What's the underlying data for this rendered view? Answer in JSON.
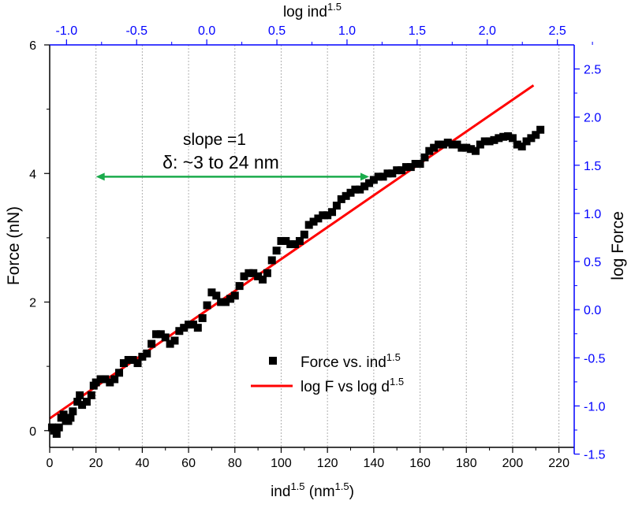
{
  "chart_data": {
    "type": "scatter",
    "title": "",
    "colors": {
      "points": "#000000",
      "fit": "#ff0000",
      "arrow": "#1aab4b",
      "secondary_axes": "#0000ff",
      "grid": "#b0b0b0"
    },
    "xlabel": {
      "base": "ind",
      "sup": "1.5",
      "rest": " (nm",
      "sup2": "1.5",
      "close": ")"
    },
    "ylabel": "Force (nN)",
    "x2label": {
      "base": "log ind",
      "sup": "1.5"
    },
    "y2label": "log Force",
    "xlim": [
      0,
      226.6
    ],
    "ylim": [
      -0.26,
      6.0
    ],
    "x2lim": [
      -1.12,
      2.62
    ],
    "y2lim": [
      -1.43,
      2.75
    ],
    "xticks": [
      "0",
      "20",
      "40",
      "60",
      "80",
      "100",
      "120",
      "140",
      "160",
      "180",
      "200",
      "220"
    ],
    "xtick_values": [
      0,
      20,
      40,
      60,
      80,
      100,
      120,
      140,
      160,
      180,
      200,
      220
    ],
    "yticks": [
      "0",
      "2",
      "4",
      "6"
    ],
    "ytick_values": [
      0,
      2,
      4,
      6
    ],
    "x2ticks": [
      "-1.0",
      "-0.5",
      "0.0",
      "0.5",
      "1.0",
      "1.5",
      "2.0",
      "2.5"
    ],
    "x2tick_values": [
      -1.0,
      -0.5,
      0.0,
      0.5,
      1.0,
      1.5,
      2.0,
      2.5
    ],
    "y2ticks": [
      "-1.5",
      "-1.0",
      "-0.5",
      "0.0",
      "0.5",
      "1.0",
      "1.5",
      "2.0",
      "2.5"
    ],
    "y2tick_values": [
      -1.5,
      -1.0,
      -0.5,
      0.0,
      0.5,
      1.0,
      1.5,
      2.0,
      2.5
    ],
    "grid": "vertical dotted at bottom major ticks",
    "series": [
      {
        "name": {
          "base": "Force vs. ind",
          "sup": "1.5"
        },
        "type": "scatter",
        "axes": "bottom-left",
        "x": [
          1,
          2,
          3,
          4,
          5,
          6,
          7,
          8,
          9,
          10,
          12,
          13,
          14,
          16,
          18,
          19,
          20,
          22,
          24,
          26,
          28,
          30,
          32,
          34,
          36,
          38,
          40,
          42,
          44,
          46,
          48,
          50,
          52,
          54,
          56,
          58,
          60,
          62,
          64,
          66,
          68,
          70,
          72,
          74,
          76,
          78,
          80,
          82,
          84,
          86,
          88,
          90,
          92,
          94,
          96,
          98,
          100,
          102,
          104,
          106,
          108,
          110,
          112,
          114,
          116,
          118,
          120,
          122,
          124,
          126,
          128,
          130,
          132,
          134,
          136,
          138,
          140,
          142,
          144,
          146,
          148,
          150,
          152,
          154,
          156,
          158,
          160,
          162,
          164,
          166,
          168,
          170,
          172,
          174,
          176,
          178,
          180,
          182,
          184,
          186,
          188,
          190,
          192,
          194,
          196,
          198,
          200,
          202,
          204,
          206,
          208,
          210,
          212
        ],
        "y": [
          0.05,
          0.0,
          -0.05,
          0.05,
          0.2,
          0.25,
          0.15,
          0.15,
          0.2,
          0.3,
          0.45,
          0.55,
          0.4,
          0.45,
          0.55,
          0.7,
          0.75,
          0.8,
          0.8,
          0.75,
          0.8,
          0.9,
          1.05,
          1.1,
          1.1,
          1.05,
          1.15,
          1.2,
          1.35,
          1.5,
          1.5,
          1.45,
          1.35,
          1.4,
          1.55,
          1.6,
          1.65,
          1.65,
          1.6,
          1.75,
          1.95,
          2.15,
          2.1,
          2.0,
          2.0,
          2.05,
          2.1,
          2.25,
          2.4,
          2.45,
          2.45,
          2.4,
          2.35,
          2.45,
          2.65,
          2.8,
          2.95,
          2.95,
          2.9,
          2.9,
          2.95,
          3.05,
          3.2,
          3.25,
          3.3,
          3.35,
          3.35,
          3.4,
          3.5,
          3.6,
          3.65,
          3.7,
          3.75,
          3.75,
          3.8,
          3.85,
          3.9,
          3.95,
          3.95,
          4.0,
          4.0,
          4.05,
          4.05,
          4.1,
          4.1,
          4.15,
          4.15,
          4.25,
          4.35,
          4.4,
          4.45,
          4.45,
          4.48,
          4.45,
          4.45,
          4.4,
          4.4,
          4.38,
          4.35,
          4.45,
          4.5,
          4.5,
          4.52,
          4.55,
          4.57,
          4.58,
          4.55,
          4.45,
          4.42,
          4.5,
          4.55,
          4.6,
          4.68
        ]
      },
      {
        "name": {
          "base": "log F vs log d",
          "sup": "1.5"
        },
        "type": "line",
        "axes": "top-right",
        "x": [
          -1.12,
          2.33
        ],
        "y": [
          -1.13,
          2.33
        ]
      }
    ],
    "annotations": {
      "slope": "slope =1",
      "range": "δ: ~3 to 24  nm",
      "arrow_x": [
        20,
        138
      ],
      "arrow_y": 3.95
    },
    "legend": "center-bottom"
  }
}
